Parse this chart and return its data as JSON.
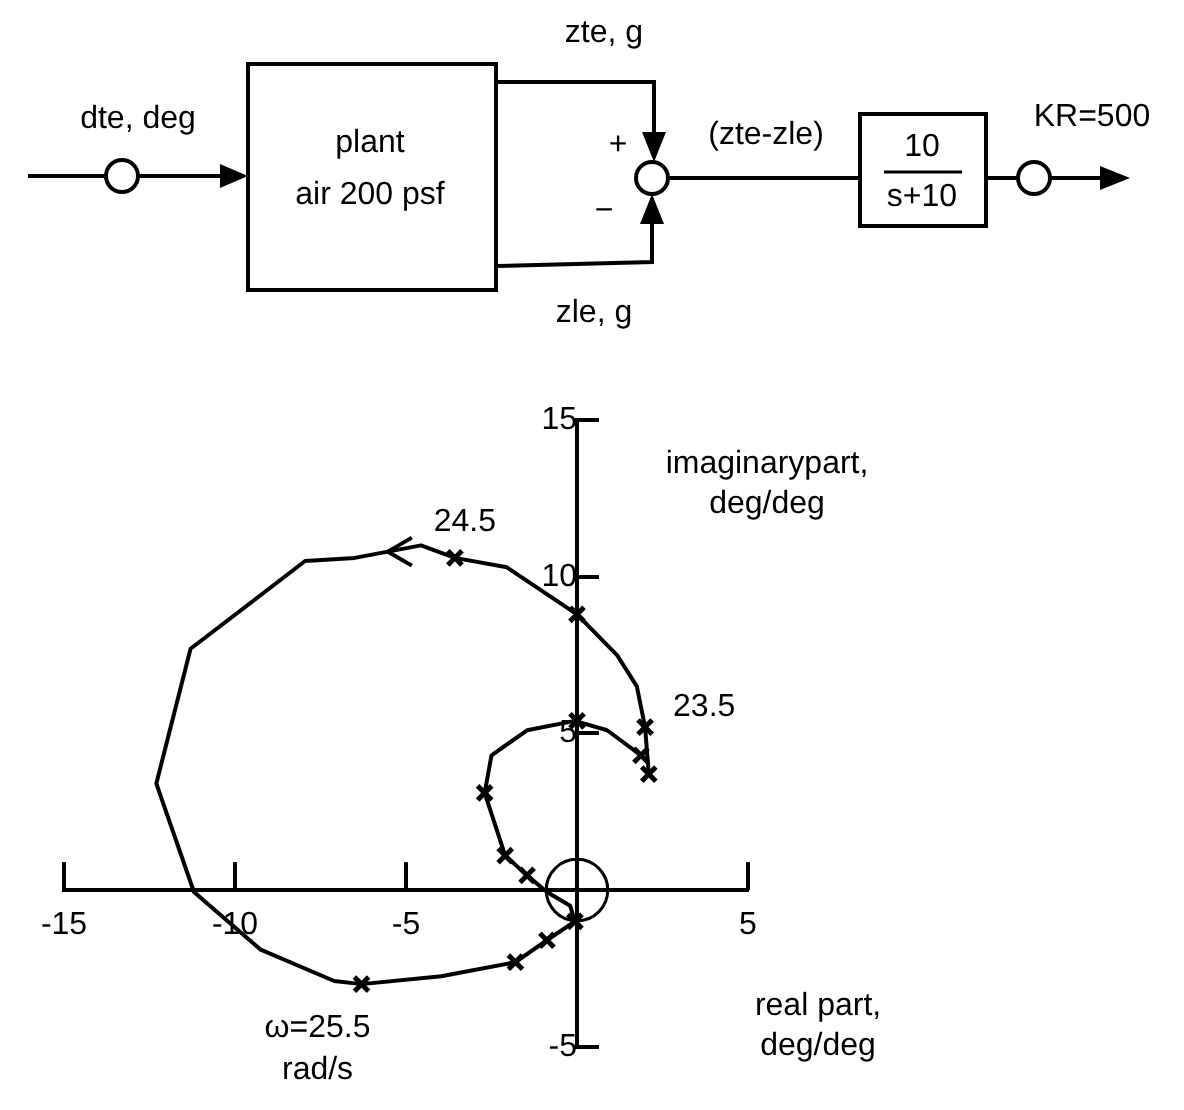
{
  "chart_data": {
    "type": "line",
    "xlabel": "real part, deg/deg",
    "ylabel": "imaginarypart, deg/deg",
    "xlim": [
      -15,
      5
    ],
    "ylim": [
      -5,
      15
    ],
    "xticks": [
      -15,
      -10,
      -5,
      5
    ],
    "yticks": [
      -5,
      5,
      10,
      15
    ],
    "grid": false,
    "legend": false,
    "series": [
      {
        "type": "line",
        "color": "#000000",
        "marker": "none",
        "line_style": "solid",
        "x": [
          2.1,
          1.99,
          1.75,
          1.17,
          0,
          -2.05,
          -3.57,
          -4.56,
          -6.5,
          -7.95,
          -11.3,
          -12.3,
          -11.2,
          -9.25,
          -7.1,
          -6.3,
          -3.97,
          -1.8,
          -0.88,
          -0.06,
          -0.2,
          -0.88,
          -1.46,
          -2.1,
          -2.7,
          -2.5,
          -1.46,
          -0.06,
          0.88,
          1.87
        ],
        "values": [
          3.7,
          5.2,
          6.5,
          7.5,
          8.8,
          10.3,
          10.6,
          11.0,
          10.6,
          10.5,
          7.7,
          3.4,
          -0.06,
          -1.9,
          -2.9,
          -3.0,
          -2.75,
          -2.3,
          -1.6,
          -1.0,
          -0.5,
          -0.06,
          0.47,
          1.1,
          3.1,
          4.3,
          5.1,
          5.4,
          5.1,
          4.3
        ]
      },
      {
        "type": "scatter",
        "color": "#000000",
        "marker": "cross",
        "x": [
          1.99,
          2.1,
          1.87,
          -3.57,
          0,
          0,
          -2.7,
          -2.1,
          -1.46,
          -6.3,
          -1.8,
          -0.88,
          -0.06
        ],
        "values": [
          5.2,
          3.7,
          4.3,
          10.6,
          8.8,
          5.4,
          3.1,
          1.1,
          0.47,
          -3.0,
          -2.3,
          -1.6,
          -1.0
        ]
      }
    ],
    "annotations": [
      {
        "text": "24.5",
        "x": -3.57,
        "y": 10.6
      },
      {
        "text": "23.5",
        "x": 1.99,
        "y": 5.2
      },
      {
        "text": "ω=25.5 rad/s",
        "x": -6.3,
        "y": -3.0
      },
      "dte, deg",
      "plant",
      "air 200 psf",
      "zte, g",
      "zle, g",
      "+",
      "−",
      "(zte-zle)",
      "10",
      "s+10",
      "KR=500"
    ]
  }
}
